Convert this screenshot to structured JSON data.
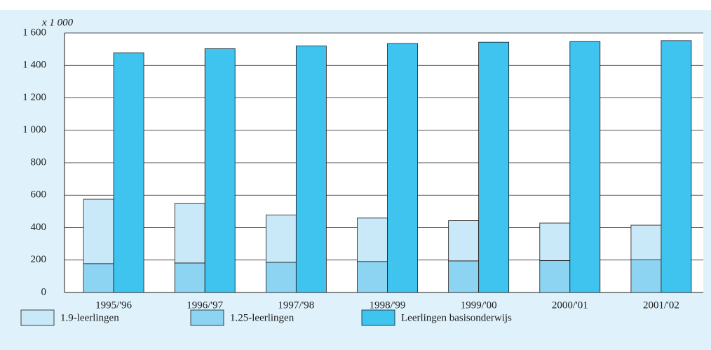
{
  "chart_data": {
    "type": "bar",
    "unit_label": "x 1 000",
    "categories": [
      "1995/'96",
      "1996/'97",
      "1997/'98",
      "1998/'99",
      "1999/'00",
      "2000/'01",
      "2001/'02"
    ],
    "series": [
      {
        "name": "1.9-leerlingen",
        "color": "#c9e9f8",
        "values": [
          397,
          366,
          291,
          268,
          248,
          231,
          214
        ]
      },
      {
        "name": "1.25-leerlingen",
        "color": "#8dd4f2",
        "values": [
          178,
          182,
          186,
          191,
          195,
          197,
          201
        ]
      },
      {
        "name": "Leerlingen basisonderwijs",
        "color": "#3fc4f0",
        "values": [
          1478,
          1503,
          1520,
          1535,
          1543,
          1547,
          1553
        ]
      }
    ],
    "ylim": [
      0,
      1600
    ],
    "yticks": [
      0,
      200,
      400,
      600,
      800,
      {
        "value": 1000,
        "label": "1 000"
      },
      {
        "value": 1200,
        "label": "1 200"
      },
      {
        "value": 1400,
        "label": "1 400"
      },
      {
        "value": 1600,
        "label": "1 600"
      }
    ],
    "grid": true
  }
}
